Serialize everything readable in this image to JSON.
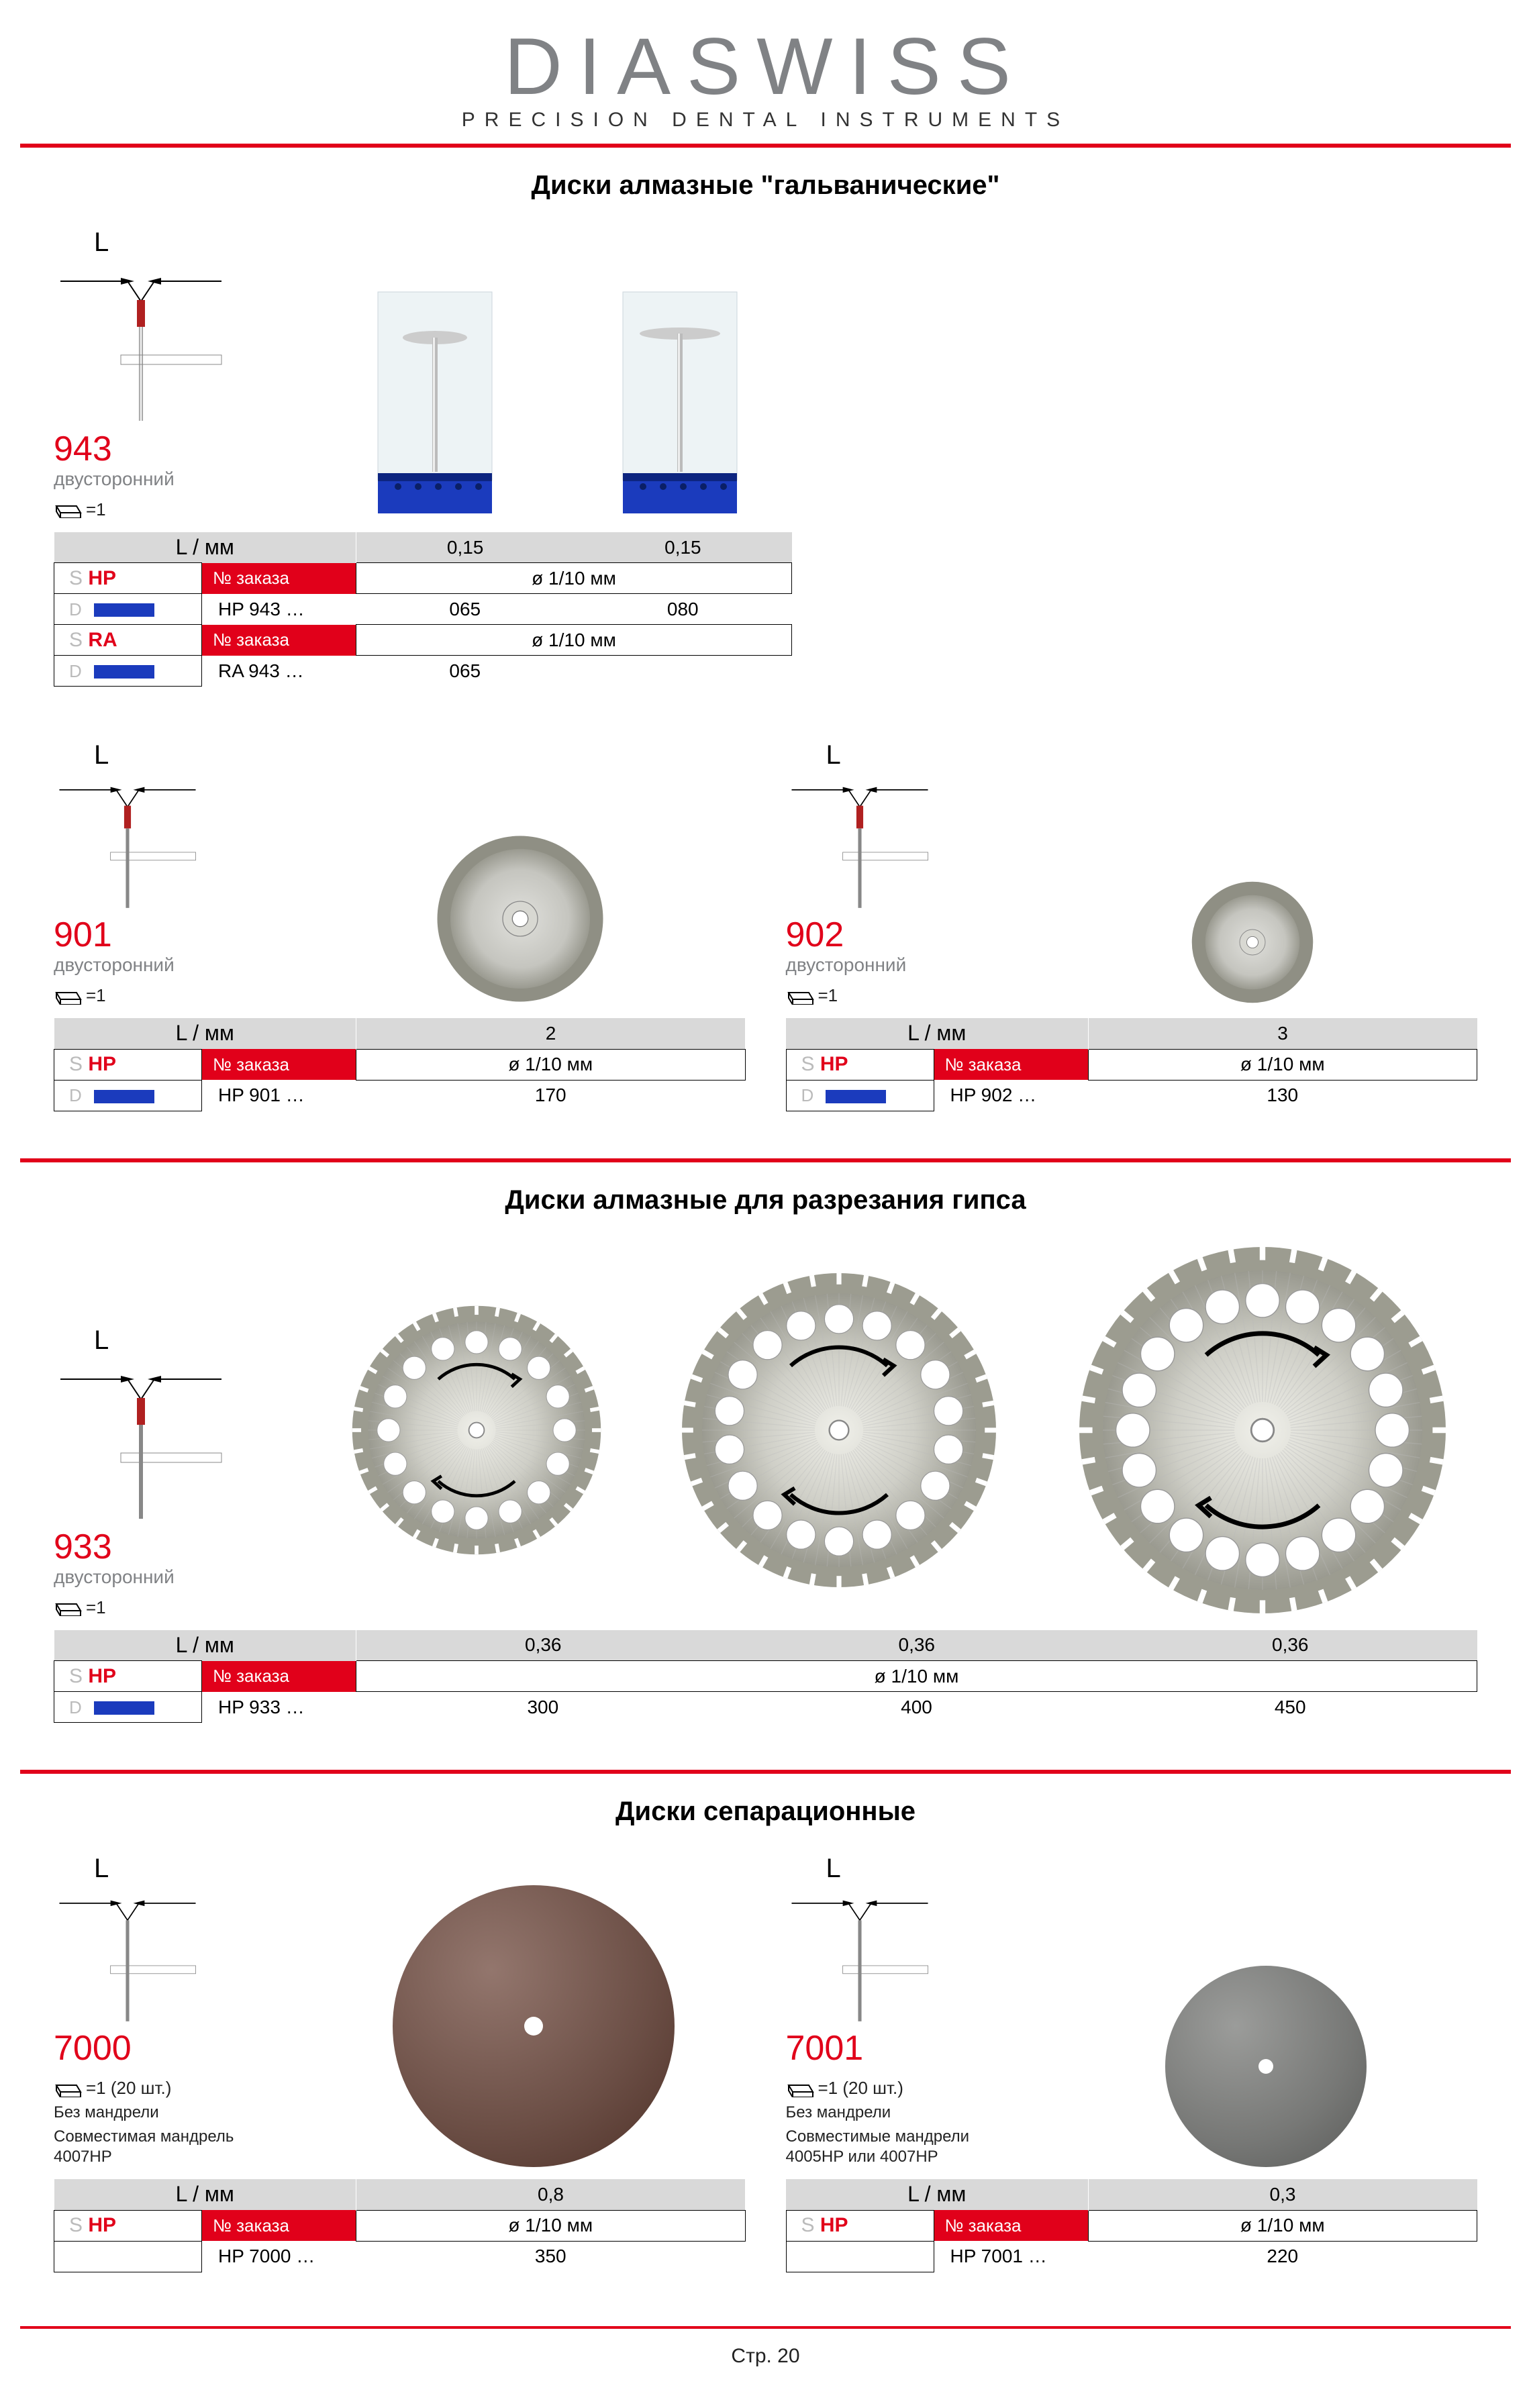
{
  "brand": {
    "name": "DIASWISS",
    "tagline": "PRECISION DENTAL INSTRUMENTS"
  },
  "colors": {
    "accent": "#e1001a",
    "grey": "#808285",
    "tableGrey": "#d9d9d9",
    "blueBar": "#1b3bbd"
  },
  "labels": {
    "lmm": "L / мм",
    "order": "№ заказа",
    "diam": "ø 1/10 мм",
    "S": "S",
    "HP": "HP",
    "RA": "RA",
    "D": "D",
    "page": "Стр. 20",
    "L": "L"
  },
  "sections": {
    "galvanic": "Диски алмазные \"гальванические\"",
    "gypsum": "Диски алмазные для разрезания гипса",
    "separation": "Диски сепарационные"
  },
  "products": {
    "p943": {
      "code": "943",
      "sub": "двусторонний",
      "eq": "=1",
      "l_values": [
        "0,15",
        "0,15"
      ],
      "shank1": "HP",
      "code_prefix1": "HP   943 …",
      "sizes1": [
        "065",
        "080"
      ],
      "shank2": "RA",
      "code_prefix2": "RA   943 …",
      "sizes2": [
        "065"
      ]
    },
    "p901": {
      "code": "901",
      "sub": "двусторонний",
      "eq": "=1",
      "l_values": [
        "2"
      ],
      "shank": "HP",
      "code_prefix": "HP   901 …",
      "sizes": [
        "170"
      ]
    },
    "p902": {
      "code": "902",
      "sub": "двусторонний",
      "eq": "=1",
      "l_values": [
        "3"
      ],
      "shank": "HP",
      "code_prefix": "HP   902 …",
      "sizes": [
        "130"
      ]
    },
    "p933": {
      "code": "933",
      "sub": "двусторонний",
      "eq": "=1",
      "l_values": [
        "0,36",
        "0,36",
        "0,36"
      ],
      "shank": "HP",
      "code_prefix": "HP   933 …",
      "sizes": [
        "300",
        "400",
        "450"
      ]
    },
    "p7000": {
      "code": "7000",
      "eq": "=1 (20 шт.)",
      "note1": "Без мандрели",
      "note2": "Совместимая мандрель 4007HP",
      "l_values": [
        "0,8"
      ],
      "shank": "HP",
      "code_prefix": "HP   7000 …",
      "sizes": [
        "350"
      ],
      "disc_color": "#6b4e45",
      "disc_diameter": 420
    },
    "p7001": {
      "code": "7001",
      "eq": "=1 (20 шт.)",
      "note1": "Без мандрели",
      "note2": "Совместимые мандрели 4005HP или 4007HP",
      "l_values": [
        "0,3"
      ],
      "shank": "HP",
      "code_prefix": "HP   7001 …",
      "sizes": [
        "220"
      ],
      "disc_color": "#777876",
      "disc_diameter": 300
    }
  }
}
